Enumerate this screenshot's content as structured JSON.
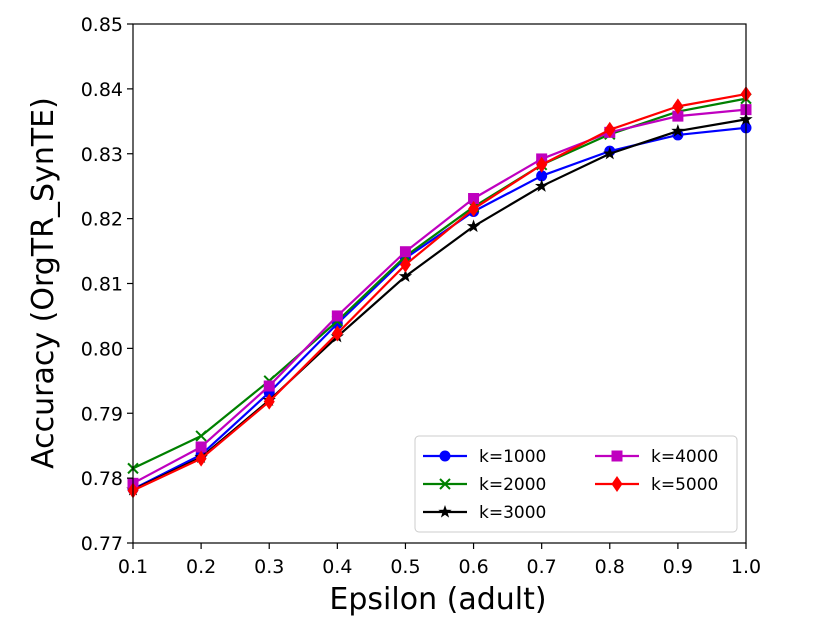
{
  "chart_data": {
    "type": "line",
    "title": "",
    "xlabel": "Epsilon (adult)",
    "ylabel": "Accuracy (OrgTR_SynTE)",
    "xlim": [
      0.1,
      1.0
    ],
    "ylim": [
      0.77,
      0.85
    ],
    "xticks": [
      "0.1",
      "0.2",
      "0.3",
      "0.4",
      "0.5",
      "0.6",
      "0.7",
      "0.8",
      "0.9",
      "1.0"
    ],
    "yticks": [
      "0.77",
      "0.78",
      "0.79",
      "0.80",
      "0.81",
      "0.82",
      "0.83",
      "0.84",
      "0.85"
    ],
    "x": [
      0.1,
      0.2,
      0.3,
      0.4,
      0.5,
      0.6,
      0.7,
      0.8,
      0.9,
      1.0
    ],
    "legend_position": "lower-right",
    "series": [
      {
        "name": "k=1000",
        "color": "#0000ff",
        "marker": "circle",
        "values": [
          0.7783,
          0.7836,
          0.7932,
          0.8038,
          0.8139,
          0.8211,
          0.8266,
          0.8304,
          0.8329,
          0.834
        ]
      },
      {
        "name": "k=2000",
        "color": "#008000",
        "marker": "x",
        "values": [
          0.7815,
          0.7865,
          0.795,
          0.8042,
          0.8142,
          0.8218,
          0.8283,
          0.833,
          0.8365,
          0.8385
        ]
      },
      {
        "name": "k=3000",
        "color": "#000000",
        "marker": "star",
        "values": [
          0.7782,
          0.7832,
          0.792,
          0.8018,
          0.8111,
          0.8188,
          0.825,
          0.83,
          0.8335,
          0.8353
        ]
      },
      {
        "name": "k=4000",
        "color": "#bf00bf",
        "marker": "square",
        "values": [
          0.7792,
          0.7848,
          0.7942,
          0.805,
          0.8149,
          0.8231,
          0.8292,
          0.8333,
          0.8358,
          0.8368
        ]
      },
      {
        "name": "k=5000",
        "color": "#ff0000",
        "marker": "diamond",
        "values": [
          0.7781,
          0.783,
          0.7918,
          0.8023,
          0.8129,
          0.8215,
          0.8283,
          0.8337,
          0.8373,
          0.8392
        ]
      }
    ]
  }
}
